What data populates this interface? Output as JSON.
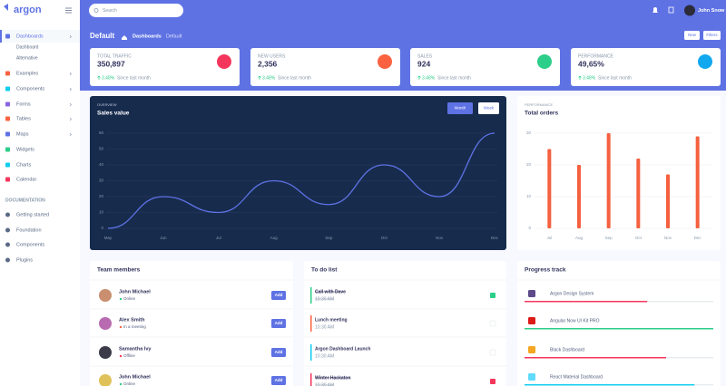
{
  "sidebar": {
    "brand": "argon",
    "nav": [
      "Dashboards",
      "Examples",
      "Components",
      "Forms",
      "Tables",
      "Maps",
      "Widgets",
      "Charts",
      "Calendar"
    ],
    "subnav": [
      "Dashboard",
      "Alternative"
    ],
    "docs_heading": "DOCUMENTATION",
    "docs": [
      "Getting started",
      "Foundation",
      "Components",
      "Plugins"
    ]
  },
  "header": {
    "search": "Search",
    "user": "John Snow",
    "title": "Default",
    "breadcrumb": [
      "Dashboards",
      "Default"
    ],
    "buttons": [
      "New",
      "Filters"
    ]
  },
  "stats": [
    {
      "label": "TOTAL TRAFFIC",
      "value": "350,897",
      "change": "3.48%",
      "note": "Since last month",
      "color": "#f5365c"
    },
    {
      "label": "NEW USERS",
      "value": "2,356",
      "change": "3.48%",
      "note": "Since last month",
      "color": "#fb6340"
    },
    {
      "label": "SALES",
      "value": "924",
      "change": "3.48%",
      "note": "Since last month",
      "color": "#2dce89"
    },
    {
      "label": "PERFORMANCE",
      "value": "49,65%",
      "change": "3.48%",
      "note": "Since last month",
      "color": "#11a8ef"
    }
  ],
  "chart_data": [
    {
      "type": "line",
      "overline": "OVERVIEW",
      "title": "Sales value",
      "buttons": [
        "Month",
        "Week"
      ],
      "categories": [
        "May",
        "Jun",
        "Jul",
        "Aug",
        "Sep",
        "Oct",
        "Nov",
        "Dec"
      ],
      "values": [
        0,
        20,
        10,
        30,
        15,
        40,
        20,
        60
      ],
      "color": "#5e72e4",
      "ylim": [
        0,
        60
      ],
      "yticks": [
        0,
        10,
        20,
        30,
        40,
        50,
        60
      ],
      "grid": true
    },
    {
      "type": "bar",
      "overline": "PERFORMANCE",
      "title": "Total orders",
      "categories": [
        "Jul",
        "Aug",
        "Sep",
        "Oct",
        "Nov",
        "Dec"
      ],
      "values": [
        25,
        20,
        30,
        22,
        17,
        29
      ],
      "color": "#f5603f",
      "ylim": [
        0,
        30
      ],
      "yticks": [
        0,
        10,
        20,
        30
      ],
      "grid": true
    }
  ],
  "team": {
    "title": "Team members",
    "button": "Add",
    "members": [
      {
        "name": "John Michael",
        "status": "Online",
        "color": "#2dce89"
      },
      {
        "name": "Alex Smith",
        "status": "In a meeting",
        "color": "#fb6340"
      },
      {
        "name": "Samantha Ivy",
        "status": "Offline",
        "color": "#f5365c"
      },
      {
        "name": "John Michael",
        "status": "Online",
        "color": "#2dce89"
      }
    ]
  },
  "todo": {
    "title": "To do list",
    "items": [
      {
        "title": "Call with Dave",
        "time": "10:30 AM",
        "done": true,
        "color": "#2dce89"
      },
      {
        "title": "Lunch meeting",
        "time": "10:30 AM",
        "done": false,
        "color": "#fb6340"
      },
      {
        "title": "Argon Dashboard Launch",
        "time": "10:30 AM",
        "done": false,
        "color": "#11cdef"
      },
      {
        "title": "Winter Hackaton",
        "time": "10:30 AM",
        "done": true,
        "color": "#f5365c"
      }
    ]
  },
  "progress": {
    "title": "Progress track",
    "items": [
      {
        "name": "Argon Design System",
        "value": 65,
        "color": "#f5365c"
      },
      {
        "name": "Angular Now UI Kit PRO",
        "value": 100,
        "color": "#2dce89"
      },
      {
        "name": "Black Dashboard",
        "value": 75,
        "color": "#f5365c"
      },
      {
        "name": "React Material Dashboard",
        "value": 90,
        "color": "#11cdef"
      }
    ]
  }
}
